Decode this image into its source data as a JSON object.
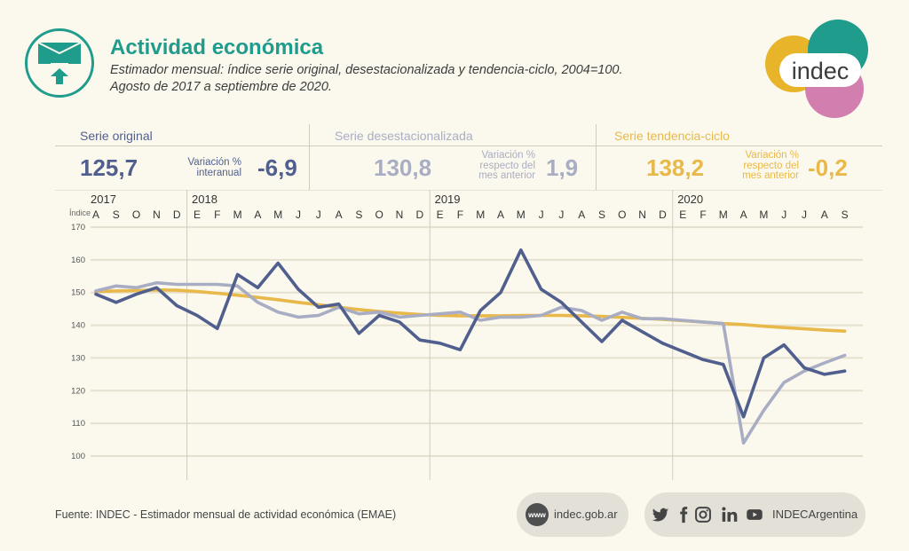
{
  "header": {
    "title": "Actividad económica",
    "subtitle_line1": "Estimador mensual: índice serie original, desestacionalizada y tendencia-ciclo, 2004=100.",
    "subtitle_line2": "Agosto de 2017 a septiembre de 2020."
  },
  "logo": {
    "text": "indec"
  },
  "kpis": [
    {
      "label": "Serie original",
      "value": "125,7",
      "variation_label_1": "Variación %",
      "variation_label_2": "interanual",
      "variation_label_3": "",
      "variation": "-6,9",
      "color": "#515f8e"
    },
    {
      "label": "Serie desestacionalizada",
      "value": "130,8",
      "variation_label_1": "Variación %",
      "variation_label_2": "respecto del",
      "variation_label_3": "mes anterior",
      "variation": "1,9",
      "color": "#a9adc4"
    },
    {
      "label": "Serie tendencia-ciclo",
      "value": "138,2",
      "variation_label_1": "Variación %",
      "variation_label_2": "respecto del",
      "variation_label_3": "mes anterior",
      "variation": "-0,2",
      "color": "#e8b84a"
    }
  ],
  "chart_data": {
    "type": "line",
    "ylabel": "Índice",
    "ylim": [
      100,
      170
    ],
    "yticks": [
      100,
      110,
      120,
      130,
      140,
      150,
      160,
      170
    ],
    "grid": true,
    "years": [
      {
        "label": "2017",
        "start_index": 0
      },
      {
        "label": "2018",
        "start_index": 5
      },
      {
        "label": "2019",
        "start_index": 17
      },
      {
        "label": "2020",
        "start_index": 29
      }
    ],
    "categories": [
      "A",
      "S",
      "O",
      "N",
      "D",
      "E",
      "F",
      "M",
      "A",
      "M",
      "J",
      "J",
      "A",
      "S",
      "O",
      "N",
      "D",
      "E",
      "F",
      "M",
      "A",
      "M",
      "J",
      "J",
      "A",
      "S",
      "O",
      "N",
      "D",
      "E",
      "F",
      "M",
      "A",
      "M",
      "J",
      "J",
      "A",
      "S"
    ],
    "series": [
      {
        "color": "#515f8e",
        "values": [
          149.5,
          147,
          149.5,
          151.5,
          146,
          143,
          139,
          155.5,
          151.5,
          159,
          151,
          145.5,
          146.5,
          137.5,
          143,
          141,
          135.5,
          134.5,
          132.5,
          144.5,
          150,
          163,
          151,
          147,
          141,
          135,
          141.5,
          138,
          134.5,
          132,
          129.5,
          128,
          112,
          130,
          134,
          127,
          125,
          126
        ]
      },
      {
        "color": "#a9adc4",
        "values": [
          150.5,
          152,
          151.5,
          153,
          152.5,
          152.5,
          152.5,
          152,
          147,
          144,
          142.5,
          143,
          145.5,
          143.5,
          144,
          142.5,
          143,
          143.5,
          144,
          141.5,
          142.5,
          142.5,
          143,
          145.5,
          144.5,
          141.5,
          144,
          142,
          142,
          141.5,
          141,
          140.5,
          104,
          114,
          122.5,
          126,
          128.5,
          130.8
        ]
      },
      {
        "color": "#e8b84a",
        "values": [
          150.3,
          150.5,
          150.6,
          150.8,
          150.7,
          150.3,
          149.8,
          149.2,
          148.5,
          147.8,
          147.0,
          146.3,
          145.5,
          144.8,
          144.2,
          143.7,
          143.3,
          143.0,
          142.9,
          142.9,
          142.9,
          143.0,
          143.0,
          143.0,
          142.9,
          142.7,
          142.4,
          142.1,
          141.8,
          141.4,
          141.0,
          140.5,
          140.2,
          139.7,
          139.3,
          138.9,
          138.5,
          138.2
        ]
      }
    ]
  },
  "footer": {
    "source": "Fuente: INDEC - Estimador mensual de actividad económica (EMAE)",
    "www_badge": "www",
    "website": "indec.gob.ar",
    "social_handle": "INDECArgentina"
  }
}
